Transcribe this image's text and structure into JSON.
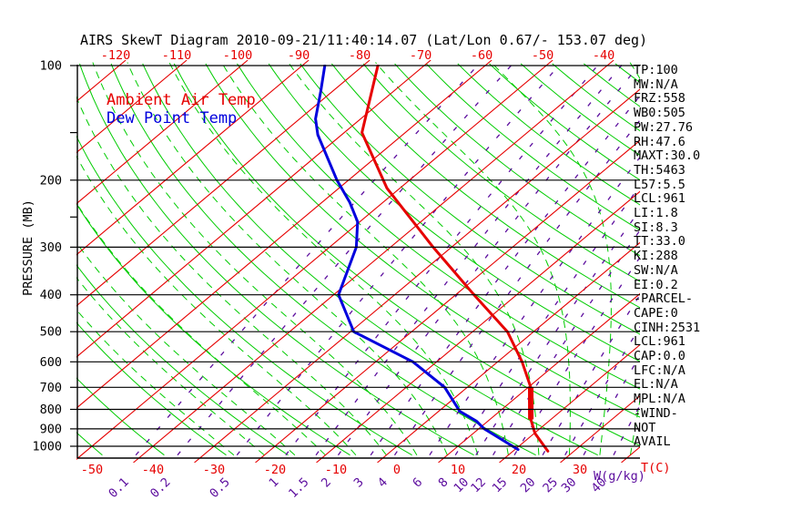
{
  "chart_data": {
    "type": "line",
    "variant": "skew-t-log-p",
    "title": "AIRS SkewT Diagram 2010-09-21/11:40:14.07 (Lat/Lon 0.67/- 153.07 deg)",
    "y_axis": {
      "label": "PRESSURE (MB)",
      "scale": "log",
      "ticks": [
        100,
        200,
        300,
        400,
        500,
        600,
        700,
        800,
        900,
        1000
      ],
      "minor_ticks": [
        150,
        250
      ]
    },
    "x_axis_top": {
      "ticks": [
        -120,
        -110,
        -100,
        -90,
        -80,
        -70,
        -60,
        -50,
        -40
      ]
    },
    "x_axis_bottom": {
      "label": "T(C)",
      "ticks": [
        -50,
        -40,
        -30,
        -20,
        -10,
        0,
        10,
        20,
        30
      ]
    },
    "mixing_axis": {
      "label": "W(g/kg)",
      "ticks": [
        0.1,
        0.2,
        0.5,
        1,
        1.5,
        2,
        3,
        4,
        6,
        8,
        10,
        12,
        15,
        20,
        25,
        30,
        40
      ]
    },
    "colors": {
      "isotherm": "#e60000",
      "adiabat": "#00cc00",
      "mixing": "#5c0d9e",
      "pressure_line": "#000000",
      "temp_curve": "#e60000",
      "dew_curve": "#0000dd"
    },
    "series": [
      {
        "name": "Ambient Air Temp",
        "color": "#e60000",
        "points_p_t": [
          [
            100,
            -77.6
          ],
          [
            150,
            -67.1
          ],
          [
            210,
            -52.1
          ],
          [
            300,
            -33.0
          ],
          [
            400,
            -17.0
          ],
          [
            500,
            -4.3
          ],
          [
            600,
            4.0
          ],
          [
            700,
            10.4
          ],
          [
            850,
            16.7
          ],
          [
            925,
            20.1
          ],
          [
            1030,
            25.7
          ]
        ],
        "bold_segment_p_t": [
          [
            700,
            10.4
          ],
          [
            850,
            16.7
          ]
        ]
      },
      {
        "name": "Dew Point Temp",
        "color": "#0000dd",
        "points_p_t": [
          [
            100,
            -86.3
          ],
          [
            117,
            -81.9
          ],
          [
            138,
            -77.4
          ],
          [
            152,
            -73.9
          ],
          [
            200,
            -61.9
          ],
          [
            229,
            -55.4
          ],
          [
            257,
            -50.4
          ],
          [
            300,
            -45.6
          ],
          [
            400,
            -39.2
          ],
          [
            500,
            -29.5
          ],
          [
            600,
            -13.9
          ],
          [
            700,
            -3.7
          ],
          [
            810,
            3.5
          ],
          [
            860,
            8.2
          ],
          [
            900,
            10.9
          ],
          [
            1020,
            20.5
          ]
        ]
      }
    ]
  },
  "stats_panel": {
    "lines": [
      "TP:100",
      "MW:N/A",
      "FRZ:558",
      "WB0:505",
      "PW:27.76",
      "RH:47.6",
      "MAXT:30.0",
      "TH:5463",
      "L57:5.5",
      "LCL:961",
      "LI:1.8",
      "SI:8.3",
      "TT:33.0",
      "KI:288",
      "SW:N/A",
      "EI:0.2",
      "-PARCEL-",
      "CAPE:0",
      "CINH:2531",
      "LCL:961",
      "CAP:0.0",
      "LFC:N/A",
      "EL:N/A",
      "MPL:N/A",
      "-WIND-",
      "NOT",
      "AVAIL"
    ]
  }
}
